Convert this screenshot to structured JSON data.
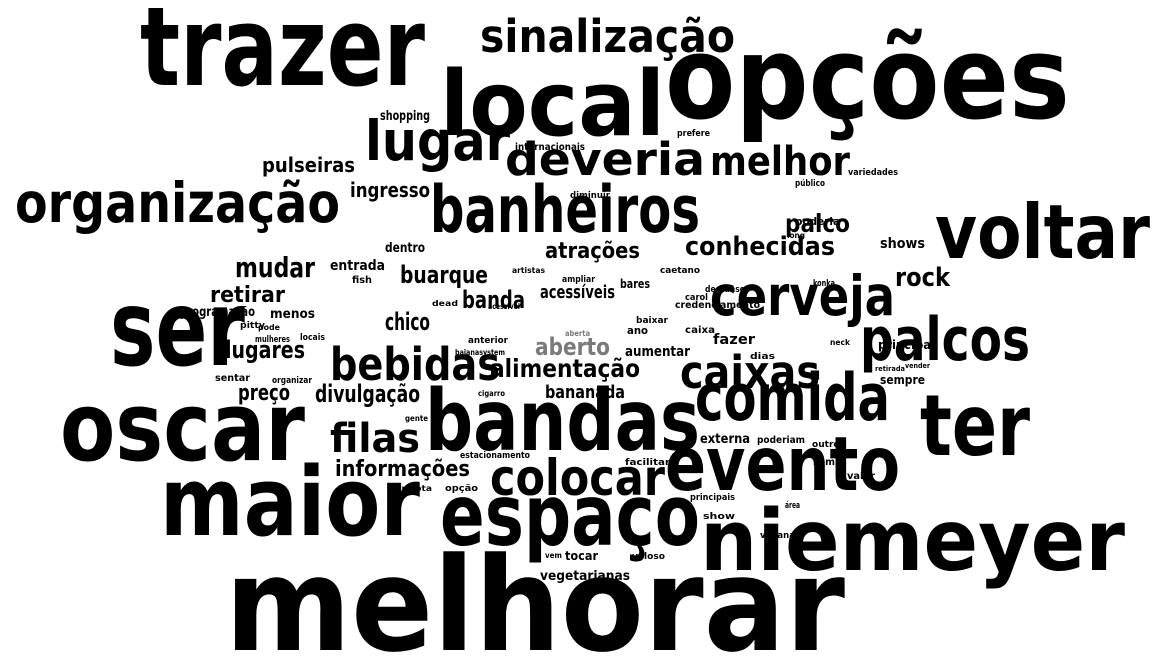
{
  "words": [
    "melhorar",
    "trazer",
    "opções",
    "local",
    "sinalização",
    "lugar",
    "deveria",
    "melhor",
    "banheiros",
    "organização",
    "voltar",
    "pulseiras",
    "ingresso",
    "ser",
    "cerveja",
    "palco",
    "conhecidas",
    "mudar",
    "palcos",
    "bebidas",
    "caixas",
    "comida",
    "oscar",
    "filas",
    "bandas",
    "ter",
    "evento",
    "colocar",
    "maior",
    "espaço",
    "niemeyer",
    "alimentação",
    "atrações",
    "buarque",
    "banda",
    "chico",
    "lugares",
    "retirar",
    "divulgação",
    "preço",
    "informações",
    "bananada",
    "aberto",
    "acessíveis",
    "rock",
    "shows",
    "fazer",
    "principal",
    "sempre",
    "externa",
    "aumentar",
    "entrada",
    "dentro",
    "menos",
    "programação",
    "shopping",
    "internacionais",
    "credenciamento",
    "bares",
    "estacionamento",
    "vegetarianas",
    "tocar",
    "facilitar",
    "vegana",
    "show",
    "veloso",
    "principais",
    "valor",
    "som",
    "outros",
    "poderiam",
    "dias",
    "caixa",
    "ano",
    "carol",
    "caetano",
    "descanso",
    "konka",
    "locais",
    "pitty",
    "mulheres",
    "pode",
    "sentar",
    "organizar",
    "fish",
    "poderia",
    "público",
    "variedades",
    "diminuir",
    "prefere",
    "baixar",
    "cigarro",
    "gente",
    "opção",
    "projota",
    "anterior",
    "vem",
    "dead",
    "neck",
    "área",
    "vender",
    "retirada",
    "ampliar",
    "artistas",
    "acessível",
    "baianasystem",
    "long",
    "aberta"
  ]
}
